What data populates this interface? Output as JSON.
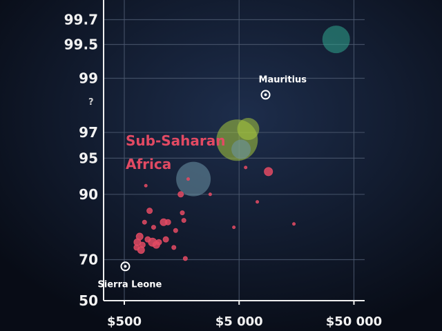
{
  "chart_data": {
    "type": "scatter",
    "title": "",
    "xlabel": "",
    "ylabel": "",
    "x_scale": "log",
    "y_scale": "logit",
    "xlim": [
      330,
      62000
    ],
    "ylim": [
      50,
      99.8
    ],
    "grid": true,
    "x_ticks": [
      {
        "value": 500,
        "label": "$500"
      },
      {
        "value": 5000,
        "label": "$5 000"
      },
      {
        "value": 50000,
        "label": "$50 000"
      }
    ],
    "y_ticks": [
      {
        "value": 50,
        "label": "50"
      },
      {
        "value": 70,
        "label": "70"
      },
      {
        "value": 90,
        "label": "90"
      },
      {
        "value": 95,
        "label": "95"
      },
      {
        "value": 97,
        "label": "97"
      },
      {
        "value": 99,
        "label": "99"
      },
      {
        "value": 99.5,
        "label": "99.5"
      },
      {
        "value": 99.7,
        "label": "99.7"
      }
    ],
    "region_label": "Sub-Saharan Africa",
    "colors": {
      "background": "#0a0f1c",
      "africa": "#e24a63",
      "east_asia": "#a7c93d",
      "europe": "#2fa58e",
      "latin_america": "#6e96a8",
      "label_text": "#ffffff"
    },
    "annotations": [
      {
        "text": "Mauritius",
        "x": 8500,
        "y": 98.6
      },
      {
        "text": "Sierra Leone",
        "x": 510,
        "y": 67
      }
    ],
    "stray_mark": "?",
    "points": [
      {
        "x": 510,
        "y": 67,
        "size": 6,
        "group": "outline"
      },
      {
        "x": 8500,
        "y": 98.6,
        "size": 6,
        "group": "outline"
      },
      {
        "x": 680,
        "y": 79,
        "size": 5,
        "group": "africa"
      },
      {
        "x": 650,
        "y": 77,
        "size": 5,
        "group": "africa"
      },
      {
        "x": 700,
        "y": 74,
        "size": 5,
        "group": "africa"
      },
      {
        "x": 640,
        "y": 75,
        "size": 4,
        "group": "africa"
      },
      {
        "x": 720,
        "y": 76,
        "size": 4,
        "group": "africa"
      },
      {
        "x": 800,
        "y": 78,
        "size": 4,
        "group": "africa"
      },
      {
        "x": 830,
        "y": 86.5,
        "size": 4,
        "group": "africa"
      },
      {
        "x": 880,
        "y": 77,
        "size": 6,
        "group": "africa"
      },
      {
        "x": 950,
        "y": 76,
        "size": 5,
        "group": "africa"
      },
      {
        "x": 1000,
        "y": 77,
        "size": 4,
        "group": "africa"
      },
      {
        "x": 1100,
        "y": 83.5,
        "size": 5,
        "group": "africa"
      },
      {
        "x": 1200,
        "y": 83.5,
        "size": 4,
        "group": "africa"
      },
      {
        "x": 1150,
        "y": 78,
        "size": 4,
        "group": "africa"
      },
      {
        "x": 750,
        "y": 83.5,
        "size": 3,
        "group": "africa"
      },
      {
        "x": 900,
        "y": 82,
        "size": 3,
        "group": "africa"
      },
      {
        "x": 1400,
        "y": 81,
        "size": 3,
        "group": "africa"
      },
      {
        "x": 1350,
        "y": 75,
        "size": 3,
        "group": "africa"
      },
      {
        "x": 1600,
        "y": 86,
        "size": 3,
        "group": "africa"
      },
      {
        "x": 1550,
        "y": 90,
        "size": 4,
        "group": "africa"
      },
      {
        "x": 1700,
        "y": 70.5,
        "size": 3,
        "group": "africa"
      },
      {
        "x": 1650,
        "y": 84,
        "size": 3,
        "group": "africa"
      },
      {
        "x": 770,
        "y": 91.5,
        "size": 2,
        "group": "africa"
      },
      {
        "x": 1800,
        "y": 92.5,
        "size": 2,
        "group": "africa"
      },
      {
        "x": 2800,
        "y": 90,
        "size": 2,
        "group": "africa"
      },
      {
        "x": 4500,
        "y": 82,
        "size": 2,
        "group": "africa"
      },
      {
        "x": 5700,
        "y": 94,
        "size": 2,
        "group": "africa"
      },
      {
        "x": 7200,
        "y": 88.5,
        "size": 2,
        "group": "africa"
      },
      {
        "x": 9000,
        "y": 93.5,
        "size": 6,
        "group": "africa"
      },
      {
        "x": 15000,
        "y": 83,
        "size": 2,
        "group": "africa"
      },
      {
        "x": 2000,
        "y": 92.5,
        "size": 25,
        "group": "latin_america"
      },
      {
        "x": 4800,
        "y": 96.5,
        "size": 30,
        "group": "east_asia"
      },
      {
        "x": 6000,
        "y": 97.2,
        "size": 16,
        "group": "east_asia"
      },
      {
        "x": 5200,
        "y": 95.8,
        "size": 14,
        "group": "latin_america"
      },
      {
        "x": 35000,
        "y": 99.55,
        "size": 20,
        "group": "europe"
      }
    ]
  }
}
